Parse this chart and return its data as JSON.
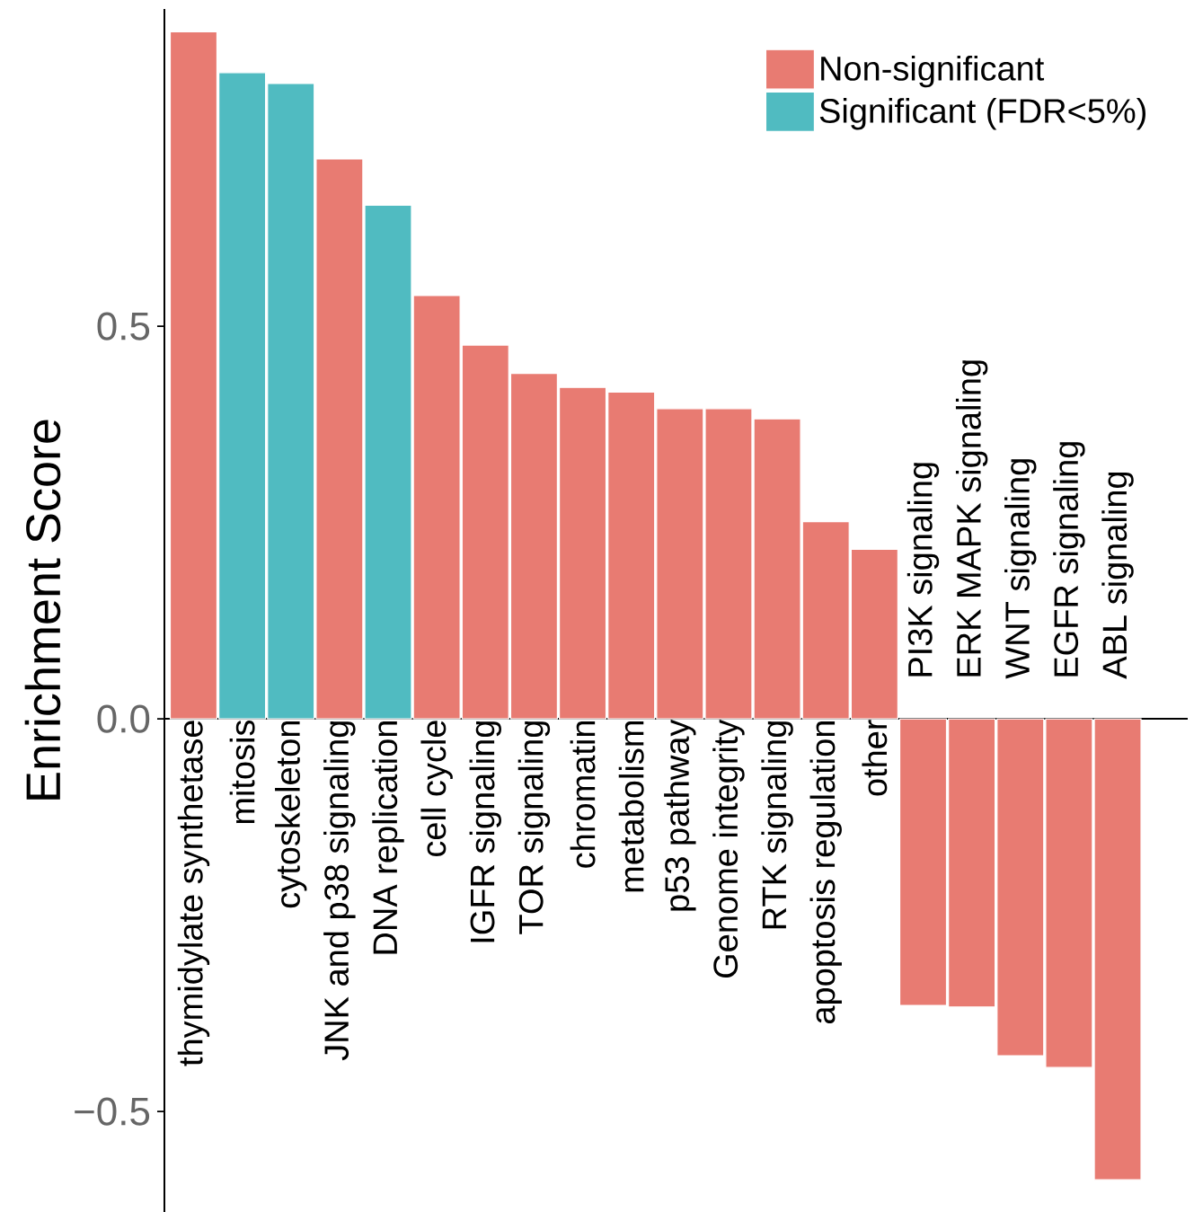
{
  "chart_data": {
    "type": "bar",
    "ylabel": "Enrichment Score",
    "categories": [
      "thymidylate synthetase",
      "mitosis",
      "cytoskeleton",
      "JNK and p38 signaling",
      "DNA replication",
      "cell cycle",
      "IGFR signaling",
      "TOR signaling",
      "chromatin",
      "metabolism",
      "p53 pathway",
      "Genome integrity",
      "RTK signaling",
      "apoptosis regulation",
      "other",
      "PI3K signaling",
      "ERK MAPK signaling",
      "WNT signaling",
      "EGFR signaling",
      "ABL signaling"
    ],
    "series": [
      {
        "name": "Non-significant",
        "color": "#e87b72",
        "values": [
          0.875,
          null,
          null,
          0.713,
          null,
          0.539,
          0.476,
          0.44,
          0.422,
          0.416,
          0.395,
          0.395,
          0.382,
          0.251,
          0.216,
          -0.365,
          -0.367,
          -0.429,
          -0.444,
          -0.587
        ]
      },
      {
        "name": "Significant (FDR<5%)",
        "color": "#50bbc1",
        "values": [
          null,
          0.823,
          0.809,
          null,
          0.654,
          null,
          null,
          null,
          null,
          null,
          null,
          null,
          null,
          null,
          null,
          null,
          null,
          null,
          null,
          null
        ]
      }
    ],
    "ylim": [
      -0.628,
      0.904
    ],
    "yticks": [
      {
        "value": -0.5,
        "label": "−0.5"
      },
      {
        "value": 0,
        "label": "0.0"
      },
      {
        "value": 0.5,
        "label": "0.5"
      }
    ],
    "legend": "top right",
    "grid": false
  }
}
